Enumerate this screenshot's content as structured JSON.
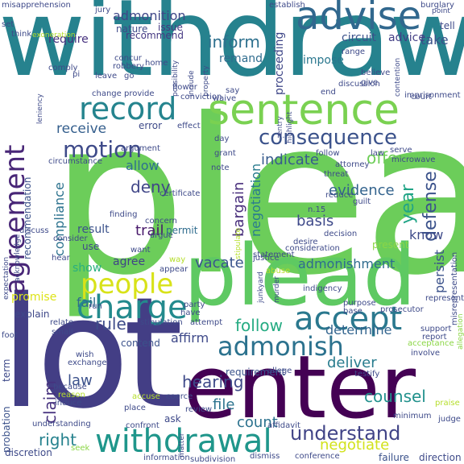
{
  "words": [
    {
      "text": "plea",
      "color": "#6ccd5a"
    },
    {
      "text": "withdraw",
      "color": "#26828e"
    },
    {
      "text": "lot",
      "color": "#433e85"
    },
    {
      "text": "enter",
      "color": "#440154"
    },
    {
      "text": "plead",
      "color": "#5ec962"
    },
    {
      "text": "sentence",
      "color": "#7ad151"
    },
    {
      "text": "advise",
      "color": "#31688e"
    },
    {
      "text": "record",
      "color": "#25848e"
    },
    {
      "text": "agreement",
      "color": "#482677"
    },
    {
      "text": "consequence",
      "color": "#3b528b"
    },
    {
      "text": "accept",
      "color": "#2a788e"
    },
    {
      "text": "charge",
      "color": "#238a8d"
    },
    {
      "text": "people",
      "color": "#d8e219"
    },
    {
      "text": "withdrawal",
      "color": "#1f968b"
    },
    {
      "text": "admonish",
      "color": "#2c728e"
    },
    {
      "text": "motion",
      "color": "#3e4a89"
    },
    {
      "text": "understand",
      "color": "#414487"
    },
    {
      "text": "negotiate",
      "color": "#d2e21b"
    },
    {
      "text": "counsel",
      "color": "#21918c"
    },
    {
      "text": "inform",
      "color": "#2d708e"
    },
    {
      "text": "admonition",
      "color": "#3f4788"
    },
    {
      "text": "receive",
      "color": "#355f8d"
    },
    {
      "text": "deny",
      "color": "#404688"
    },
    {
      "text": "evidence",
      "color": "#33638d"
    },
    {
      "text": "indicate",
      "color": "#375b8d"
    },
    {
      "text": "offer",
      "color": "#6ece58"
    },
    {
      "text": "defense",
      "color": "#3b528b"
    },
    {
      "text": "bargain",
      "color": "#472d7b"
    },
    {
      "text": "negotiation",
      "color": "#297b8e"
    },
    {
      "text": "year",
      "color": "#20a486"
    },
    {
      "text": "compliance",
      "color": "#2c728e"
    },
    {
      "text": "basis",
      "color": "#3e4989"
    },
    {
      "text": "admonishment",
      "color": "#2f6c8e"
    },
    {
      "text": "right",
      "color": "#26828e"
    },
    {
      "text": "claim",
      "color": "#46327e"
    },
    {
      "text": "law",
      "color": "#3b518b"
    },
    {
      "text": "rule",
      "color": "#3e4c8a"
    },
    {
      "text": "fail",
      "color": "#2f6b8e"
    },
    {
      "text": "promise",
      "color": "#dde318"
    },
    {
      "text": "vacate",
      "color": "#3a548c"
    },
    {
      "text": "show",
      "color": "#29af7f"
    },
    {
      "text": "agree",
      "color": "#404387"
    },
    {
      "text": "allow",
      "color": "#2d708e"
    },
    {
      "text": "trail",
      "color": "#48196b"
    },
    {
      "text": "follow",
      "color": "#25ab82"
    },
    {
      "text": "hearing",
      "color": "#3e4a89"
    },
    {
      "text": "file",
      "color": "#2c738e"
    },
    {
      "text": "count",
      "color": "#2c728e"
    },
    {
      "text": "deliver",
      "color": "#287c8e"
    },
    {
      "text": "determine",
      "color": "#32648e"
    },
    {
      "text": "persist",
      "color": "#3b528b"
    },
    {
      "text": "know",
      "color": "#3e4a89"
    },
    {
      "text": "affirm",
      "color": "#3e4989"
    },
    {
      "text": "take",
      "color": "#3b528b"
    },
    {
      "text": "require",
      "color": "#46317e"
    },
    {
      "text": "recommend",
      "color": "#453882"
    },
    {
      "text": "remand",
      "color": "#2f6c8e"
    },
    {
      "text": "proceeding",
      "color": "#3f4788"
    },
    {
      "text": "impose",
      "color": "#2a778e"
    },
    {
      "text": "circuit",
      "color": "#3b528b"
    },
    {
      "text": "advice",
      "color": "#433e85"
    },
    {
      "text": "issue",
      "color": "#453781"
    },
    {
      "text": "nature",
      "color": "#3e4a89"
    },
    {
      "text": "recommendation",
      "color": "#3b528b"
    },
    {
      "text": "permit",
      "color": "#2f6c8e"
    },
    {
      "text": "result",
      "color": "#3b528b"
    },
    {
      "text": "use",
      "color": "#3e4989"
    },
    {
      "text": "error",
      "color": "#3e4a89"
    },
    {
      "text": "requirement",
      "color": "#3a538b"
    },
    {
      "text": "explain",
      "color": "#3f4889"
    },
    {
      "text": "probation",
      "color": "#3b528b"
    },
    {
      "text": "term",
      "color": "#3e4a89"
    },
    {
      "text": "discretion",
      "color": "#3e4a89"
    },
    {
      "text": "ask",
      "color": "#3e4989"
    },
    {
      "text": "contend",
      "color": "#3b528b"
    },
    {
      "text": "present",
      "color": "#8bd646"
    },
    {
      "text": "burglary",
      "color": "#3e4a89"
    },
    {
      "text": "establish",
      "color": "#3e4a89"
    },
    {
      "text": "misapprehension",
      "color": "#3e4989"
    },
    {
      "text": "exoneration",
      "color": "#b5de2b"
    },
    {
      "text": "represent",
      "color": "#3e4a89"
    },
    {
      "text": "misrepresentation",
      "color": "#3e4a89"
    },
    {
      "text": "failure",
      "color": "#3b528b"
    },
    {
      "text": "direction",
      "color": "#3e4a89"
    },
    {
      "text": "conference",
      "color": "#3e4a89"
    },
    {
      "text": "dismiss",
      "color": "#3e4a89"
    },
    {
      "text": "information",
      "color": "#3e4a89"
    },
    {
      "text": "understanding",
      "color": "#3e4a89"
    },
    {
      "text": "seek",
      "color": "#8bd646"
    },
    {
      "text": "confront",
      "color": "#3e4a89"
    },
    {
      "text": "affidavit",
      "color": "#3e4a89"
    },
    {
      "text": "minimum",
      "color": "#3e4a89"
    },
    {
      "text": "judge",
      "color": "#3e4a89"
    },
    {
      "text": "praise",
      "color": "#b5de2b"
    },
    {
      "text": "prosecutor",
      "color": "#3e4a89"
    },
    {
      "text": "indigency",
      "color": "#3e4a89"
    },
    {
      "text": "junkyard",
      "color": "#3e4a89"
    },
    {
      "text": "murder",
      "color": "#3e4a89"
    },
    {
      "text": "justice",
      "color": "#3e4a89"
    },
    {
      "text": "abuse",
      "color": "#b5de2b"
    },
    {
      "text": "purpose",
      "color": "#3e4a89"
    },
    {
      "text": "support",
      "color": "#3e4a89"
    },
    {
      "text": "involve",
      "color": "#3e4a89"
    },
    {
      "text": "acceptance",
      "color": "#8bd646"
    },
    {
      "text": "report",
      "color": "#3e4a89"
    },
    {
      "text": "place",
      "color": "#3e4a89"
    },
    {
      "text": "review",
      "color": "#3e4a89"
    },
    {
      "text": "allege",
      "color": "#3e4a89"
    },
    {
      "text": "testify",
      "color": "#3e4a89"
    },
    {
      "text": "exchange",
      "color": "#3e4a89"
    },
    {
      "text": "wish",
      "color": "#3e4a89"
    },
    {
      "text": "because",
      "color": "#3e4a89"
    },
    {
      "text": "reason",
      "color": "#b5de2b"
    },
    {
      "text": "induce",
      "color": "#3e4a89"
    },
    {
      "text": "accuse",
      "color": "#b5de2b"
    },
    {
      "text": "coerce",
      "color": "#3e4a89"
    },
    {
      "text": "stipulation",
      "color": "#3e4a89"
    },
    {
      "text": "base",
      "color": "#3e4a89"
    },
    {
      "text": "relate",
      "color": "#3e4a89"
    },
    {
      "text": "small",
      "color": "#3e4a89"
    },
    {
      "text": "foot",
      "color": "#3e4a89"
    },
    {
      "text": "have",
      "color": "#3e4a89"
    },
    {
      "text": "attempt",
      "color": "#3e4a89"
    },
    {
      "text": "party",
      "color": "#3e4a89"
    },
    {
      "text": "run",
      "color": "#3e4a89"
    },
    {
      "text": "expectation",
      "color": "#3e4a89"
    },
    {
      "text": "acknowledge",
      "color": "#3e4a89"
    },
    {
      "text": "discuss",
      "color": "#3e4a89"
    },
    {
      "text": "appear",
      "color": "#3e4a89"
    },
    {
      "text": "way",
      "color": "#b5de2b"
    },
    {
      "text": "want",
      "color": "#3e4a89"
    },
    {
      "text": "hear",
      "color": "#3e4a89"
    },
    {
      "text": "argue",
      "color": "#3e4a89"
    },
    {
      "text": "consider",
      "color": "#3e4a89"
    },
    {
      "text": "concern",
      "color": "#3e4a89"
    },
    {
      "text": "finding",
      "color": "#3e4a89"
    },
    {
      "text": "certificate",
      "color": "#3e4a89"
    },
    {
      "text": "note",
      "color": "#3e4a89"
    },
    {
      "text": "grant",
      "color": "#3e4a89"
    },
    {
      "text": "statement",
      "color": "#3e4a89"
    },
    {
      "text": "stipulate",
      "color": "#b5de2b"
    },
    {
      "text": "desire",
      "color": "#3e4a89"
    },
    {
      "text": "decision",
      "color": "#3e4a89"
    },
    {
      "text": "consideration",
      "color": "#3e4a89"
    },
    {
      "text": "n.15",
      "color": "#3e4a89"
    },
    {
      "text": "reduce",
      "color": "#3e4a89"
    },
    {
      "text": "threat",
      "color": "#3e4a89"
    },
    {
      "text": "attorney",
      "color": "#3e4a89"
    },
    {
      "text": "guilt",
      "color": "#3e4a89"
    },
    {
      "text": "microwave",
      "color": "#3e4a89"
    },
    {
      "text": "serve",
      "color": "#3e4a89"
    },
    {
      "text": "circumstance",
      "color": "#3e4a89"
    },
    {
      "text": "argument",
      "color": "#3e4a89"
    },
    {
      "text": "effect",
      "color": "#3e4a89"
    },
    {
      "text": "day",
      "color": "#3e4a89"
    },
    {
      "text": "conviction",
      "color": "#3e4a89"
    },
    {
      "text": "waive",
      "color": "#3e4a89"
    },
    {
      "text": "say",
      "color": "#3e4a89"
    },
    {
      "text": "flower",
      "color": "#3e4a89"
    },
    {
      "text": "discussion",
      "color": "#3e4a89"
    },
    {
      "text": "imprisonment",
      "color": "#3e4a89"
    },
    {
      "text": "end",
      "color": "#3e4a89"
    },
    {
      "text": "give",
      "color": "#3e4a89"
    },
    {
      "text": "believe",
      "color": "#3e4a89"
    },
    {
      "text": "change",
      "color": "#3e4a89"
    },
    {
      "text": "provide",
      "color": "#3e4a89"
    },
    {
      "text": "leniency",
      "color": "#3e4a89"
    },
    {
      "text": "comply",
      "color": "#3e4a89"
    },
    {
      "text": "pi",
      "color": "#3e4a89"
    },
    {
      "text": "leave",
      "color": "#3e4a89"
    },
    {
      "text": "go",
      "color": "#3e4a89"
    },
    {
      "text": "home",
      "color": "#3e4a89"
    },
    {
      "text": "concur",
      "color": "#3e4a89"
    },
    {
      "text": "robbery",
      "color": "#3e4a89"
    },
    {
      "text": "possibility",
      "color": "#3e4a89"
    },
    {
      "text": "include",
      "color": "#3e4a89"
    },
    {
      "text": "property",
      "color": "#3e4a89"
    },
    {
      "text": "range",
      "color": "#3e4a89"
    },
    {
      "text": "contention",
      "color": "#3e4a89"
    },
    {
      "text": "jury",
      "color": "#3e4a89"
    },
    {
      "text": "point",
      "color": "#3e4a89"
    },
    {
      "text": "tell",
      "color": "#3e4a89"
    },
    {
      "text": "think",
      "color": "#3e4a89"
    },
    {
      "text": "set",
      "color": "#3e4a89"
    },
    {
      "text": "follow",
      "color": "#3e4a89"
    },
    {
      "text": "law",
      "color": "#3e4a89"
    },
    {
      "text": "court",
      "color": "#3e4a89"
    },
    {
      "text": "subdivision",
      "color": "#3e4a89"
    },
    {
      "text": "matter",
      "color": "#3e4a89"
    },
    {
      "text": "entry",
      "color": "#3e4a89"
    },
    {
      "text": "n.",
      "color": "#3e4a89"
    },
    {
      "text": "highlight",
      "color": "#3e4a89"
    },
    {
      "text": "allegation",
      "color": "#8bd646"
    }
  ]
}
